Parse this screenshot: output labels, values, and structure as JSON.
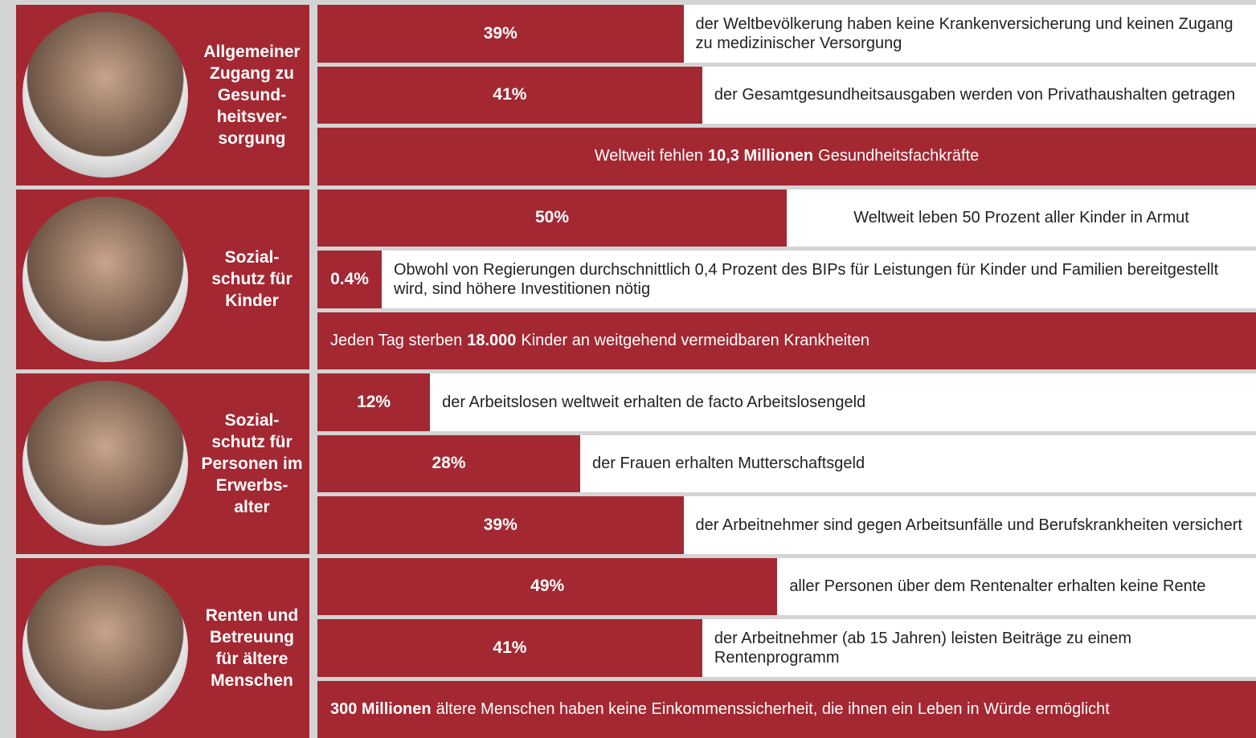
{
  "sections": [
    {
      "label_lines": [
        "Allgemeiner",
        "Zugang zu",
        "Gesund-",
        "heitsver-",
        "sorgung"
      ],
      "rows": [
        {
          "value": 39,
          "value_label": "39%",
          "text": "der Weltbevölkerung haben keine Krankenversicherung und keinen Zugang zu medizinischer Versorgung"
        },
        {
          "value": 41,
          "value_label": "41%",
          "text": "der Gesamtgesundheitsausgaben werden von Privathaushalten getragen"
        },
        {
          "text_parts": [
            {
              "text": "Weltweit fehlen"
            },
            {
              "text": "10,3 Millionen",
              "bold": true
            },
            {
              "text": "Gesundheitsfachkräfte"
            }
          ],
          "align": "center"
        }
      ]
    },
    {
      "label_lines": [
        "Sozial-",
        "schutz für",
        "Kinder"
      ],
      "rows": [
        {
          "value": 50,
          "value_label": "50%",
          "text": "Weltweit leben 50 Prozent aller Kinder in Armut",
          "align": "center"
        },
        {
          "value": 0.4,
          "value_label": "0.4%",
          "text": "Obwohl von Regierungen durchschnittlich 0,4 Prozent des BIPs für Leistungen für Kinder und Familien bereitgestellt wird, sind höhere Investitionen nötig"
        },
        {
          "text_parts": [
            {
              "text": "Jeden Tag sterben"
            },
            {
              "text": "18.000",
              "bold": true
            },
            {
              "text": "Kinder an weitgehend vermeidbaren Krankheiten"
            }
          ],
          "align": "left"
        }
      ]
    },
    {
      "label_lines": [
        "Sozial-",
        "schutz für",
        "Personen im",
        "Erwerbs-",
        "alter"
      ],
      "rows": [
        {
          "value": 12,
          "value_label": "12%",
          "text": "der Arbeitslosen weltweit  erhalten de facto Arbeitslosengeld"
        },
        {
          "value": 28,
          "value_label": "28%",
          "text": "der Frauen erhalten Mutterschaftsgeld"
        },
        {
          "value": 39,
          "value_label": "39%",
          "text": "der Arbeitnehmer sind gegen Arbeitsunfälle und Berufskrankheiten versichert"
        }
      ]
    },
    {
      "label_lines": [
        "Renten und",
        "Betreuung",
        "für ältere",
        "Menschen"
      ],
      "rows": [
        {
          "value": 49,
          "value_label": "49%",
          "text": "aller Personen über dem Rentenalter erhalten keine Rente"
        },
        {
          "value": 41,
          "value_label": "41%",
          "text": "der Arbeitnehmer (ab 15 Jahren) leisten Beiträge zu einem Rentenprogramm"
        },
        {
          "text_parts": [
            {
              "text": "300 Millionen",
              "bold": true
            },
            {
              "text": "ältere Menschen haben keine Einkommenssicherheit, die ihnen ein Leben in Würde ermöglicht"
            }
          ],
          "align": "left"
        }
      ]
    }
  ]
}
